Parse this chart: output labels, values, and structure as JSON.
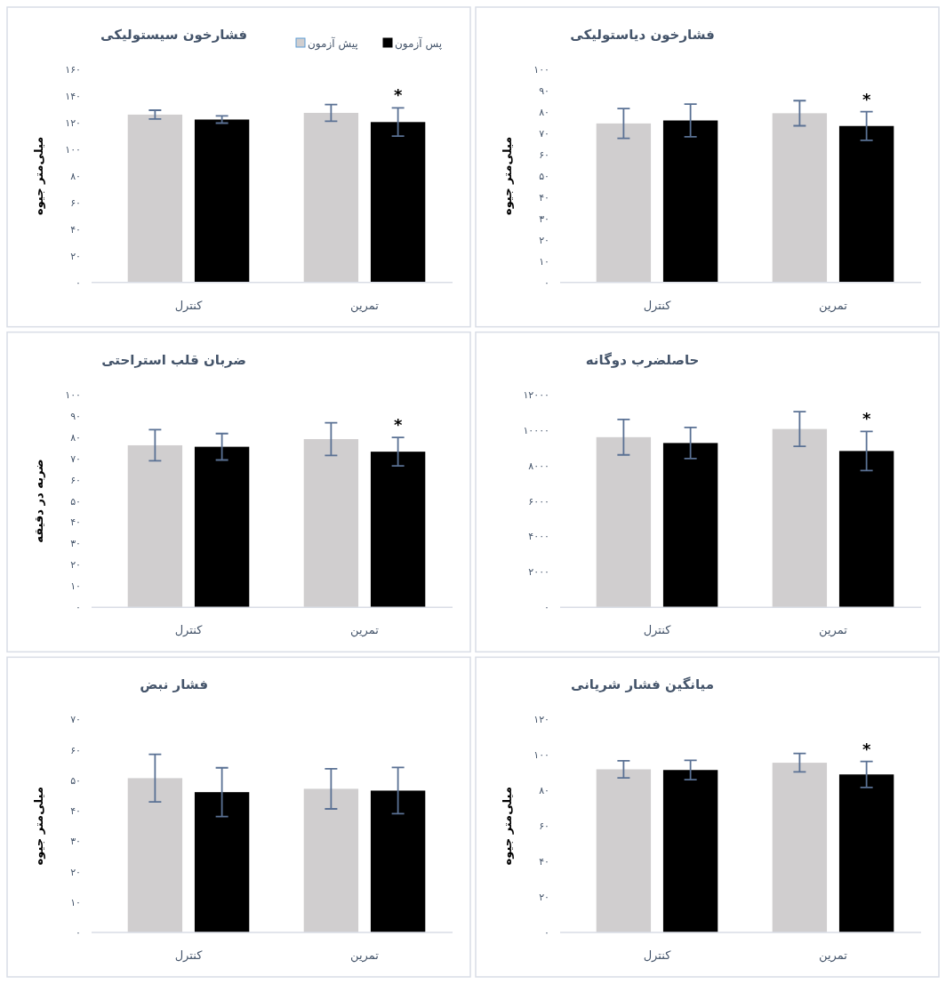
{
  "chart_data": [
    {
      "type": "bar",
      "title": "فشارخون سیستولیکی",
      "ylabel": "میلی‌متر جیوه",
      "categories": [
        "کنترل",
        "تمرین"
      ],
      "legend": "top right",
      "series": [
        {
          "name": "پیش آزمون",
          "color": "#d0cecf",
          "values": [
            126,
            127.3
          ],
          "errors": [
            3.3,
            6.3
          ]
        },
        {
          "name": "پس آزمون",
          "color": "#000000",
          "values": [
            122.3,
            120.4
          ],
          "errors": [
            2.7,
            10.6
          ]
        }
      ],
      "ylim": [
        0,
        160
      ],
      "yticks": [
        {
          "value": 0,
          "label": "۰"
        },
        {
          "value": 20,
          "label": "۲۰"
        },
        {
          "value": 40,
          "label": "۴۰"
        },
        {
          "value": 60,
          "label": "۶۰"
        },
        {
          "value": 80,
          "label": "۸۰"
        },
        {
          "value": 100,
          "label": "۱۰۰"
        },
        {
          "value": 120,
          "label": "۱۲۰"
        },
        {
          "value": 140,
          "label": "۱۴۰"
        },
        {
          "value": 160,
          "label": "۱۶۰"
        }
      ],
      "annotations": [
        "*"
      ]
    },
    {
      "type": "bar",
      "title": "فشارخون دیاستولیکی",
      "ylabel": "میلی‌متر جیوه",
      "categories": [
        "کنترل",
        "تمرین"
      ],
      "series": [
        {
          "color": "#d0cecf",
          "values": [
            74.6,
            79.4
          ],
          "errors": [
            7,
            5.9
          ]
        },
        {
          "color": "#000000",
          "values": [
            76,
            73.4
          ],
          "errors": [
            7.7,
            6.7
          ]
        }
      ],
      "ylim": [
        0,
        100
      ],
      "yticks": [
        {
          "value": 0,
          "label": "۰"
        },
        {
          "value": 10,
          "label": "۱۰"
        },
        {
          "value": 20,
          "label": "۲۰"
        },
        {
          "value": 30,
          "label": "۳۰"
        },
        {
          "value": 40,
          "label": "۴۰"
        },
        {
          "value": 50,
          "label": "۵۰"
        },
        {
          "value": 60,
          "label": "۶۰"
        },
        {
          "value": 70,
          "label": "۷۰"
        },
        {
          "value": 80,
          "label": "۸۰"
        },
        {
          "value": 90,
          "label": "۹۰"
        },
        {
          "value": 100,
          "label": "۱۰۰"
        }
      ],
      "annotations": [
        "*"
      ]
    },
    {
      "type": "bar",
      "title": "ضربان قلب استراحتی",
      "ylabel": "ضربه در دقیقه",
      "categories": [
        "کنترل",
        "تمرین"
      ],
      "series": [
        {
          "color": "#d0cecf",
          "values": [
            76.1,
            79
          ],
          "errors": [
            7.3,
            7.7
          ]
        },
        {
          "color": "#000000",
          "values": [
            75.4,
            73.1
          ],
          "errors": [
            6.2,
            6.7
          ]
        }
      ],
      "ylim": [
        0,
        100
      ],
      "yticks": [
        {
          "value": 0,
          "label": "۰"
        },
        {
          "value": 10,
          "label": "۱۰"
        },
        {
          "value": 20,
          "label": "۲۰"
        },
        {
          "value": 30,
          "label": "۳۰"
        },
        {
          "value": 40,
          "label": "۴۰"
        },
        {
          "value": 50,
          "label": "۵۰"
        },
        {
          "value": 60,
          "label": "۶۰"
        },
        {
          "value": 70,
          "label": "۷۰"
        },
        {
          "value": 80,
          "label": "۸۰"
        },
        {
          "value": 90,
          "label": "۹۰"
        },
        {
          "value": 100,
          "label": "۱۰۰"
        }
      ],
      "annotations": [
        "*"
      ]
    },
    {
      "type": "bar",
      "title": "حاصلضرب دوگانه",
      "categories": [
        "کنترل",
        "تمرین"
      ],
      "series": [
        {
          "color": "#d0cecf",
          "values": [
            9590,
            10050
          ],
          "errors": [
            1000,
            980
          ]
        },
        {
          "color": "#000000",
          "values": [
            9260,
            8810
          ],
          "errors": [
            880,
            1100
          ]
        }
      ],
      "ylim": [
        0,
        12000
      ],
      "yticks": [
        {
          "value": 0,
          "label": "۰"
        },
        {
          "value": 2000,
          "label": "۲۰۰۰"
        },
        {
          "value": 4000,
          "label": "۴۰۰۰"
        },
        {
          "value": 6000,
          "label": "۶۰۰۰"
        },
        {
          "value": 8000,
          "label": "۸۰۰۰"
        },
        {
          "value": 10000,
          "label": "۱۰۰۰۰"
        },
        {
          "value": 12000,
          "label": "۱۲۰۰۰"
        }
      ],
      "annotations": [
        "*"
      ]
    },
    {
      "type": "bar",
      "title": "فشار نبض",
      "ylabel": "میلی‌متر جیوه",
      "categories": [
        "کنترل",
        "تمرین"
      ],
      "series": [
        {
          "color": "#d0cecf",
          "values": [
            50.7,
            47.2
          ],
          "errors": [
            7.8,
            6.6
          ]
        },
        {
          "color": "#000000",
          "values": [
            46.1,
            46.6
          ],
          "errors": [
            8,
            7.6
          ]
        }
      ],
      "ylim": [
        0,
        70
      ],
      "yticks": [
        {
          "value": 0,
          "label": "۰"
        },
        {
          "value": 10,
          "label": "۱۰"
        },
        {
          "value": 20,
          "label": "۲۰"
        },
        {
          "value": 30,
          "label": "۳۰"
        },
        {
          "value": 40,
          "label": "۴۰"
        },
        {
          "value": 50,
          "label": "۵۰"
        },
        {
          "value": 60,
          "label": "۶۰"
        },
        {
          "value": 70,
          "label": "۷۰"
        }
      ]
    },
    {
      "type": "bar",
      "title": "میانگین فشار شریانی",
      "ylabel": "میلی‌متر جیوه",
      "categories": [
        "کنترل",
        "تمرین"
      ],
      "series": [
        {
          "color": "#d0cecf",
          "values": [
            91.9,
            95.6
          ],
          "errors": [
            4.8,
            5.2
          ]
        },
        {
          "color": "#000000",
          "values": [
            91.5,
            89
          ],
          "errors": [
            5.4,
            7.3
          ]
        }
      ],
      "ylim": [
        0,
        120
      ],
      "yticks": [
        {
          "value": 0,
          "label": "۰"
        },
        {
          "value": 20,
          "label": "۲۰"
        },
        {
          "value": 40,
          "label": "۴۰"
        },
        {
          "value": 60,
          "label": "۶۰"
        },
        {
          "value": 80,
          "label": "۸۰"
        },
        {
          "value": 100,
          "label": "۱۰۰"
        },
        {
          "value": 120,
          "label": "۱۲۰"
        }
      ],
      "annotations": [
        "*"
      ]
    }
  ]
}
